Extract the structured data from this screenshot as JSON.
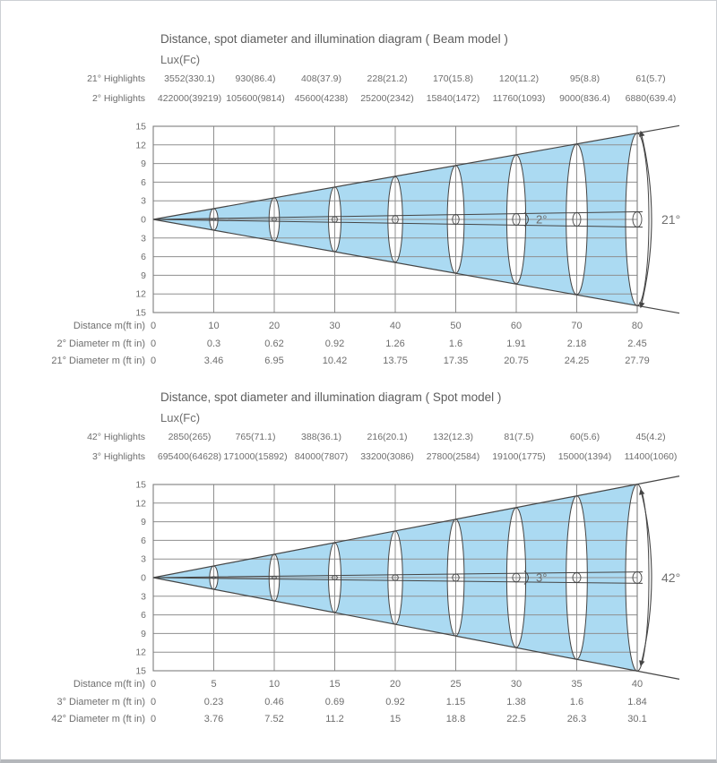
{
  "page": {
    "background": "#ffffff",
    "border_color": "#cdd0d4",
    "bottom_bar_color": "#b4b7bb"
  },
  "colors": {
    "beam_fill": "#abdaf2",
    "outline": "#454545",
    "grid": "#8f8f8f",
    "text": "#6e6e6e",
    "title_text": "#5d5d5d"
  },
  "chart_data": [
    {
      "type": "beam-illumination-diagram",
      "title": "Distance, spot diameter and illumination diagram ( Beam model )",
      "unit_label": "Lux(Fc)",
      "highlight_rows": [
        {
          "label": "21° Highlights",
          "values": [
            "3552(330.1)",
            "930(86.4)",
            "408(37.9)",
            "228(21.2)",
            "170(15.8)",
            "120(11.2)",
            "95(8.8)",
            "61(5.7)"
          ]
        },
        {
          "label": "2° Highlights",
          "values": [
            "422000(39219)",
            "105600(9814)",
            "45600(4238)",
            "25200(2342)",
            "15840(1472)",
            "11760(1093)",
            "9000(836.4)",
            "6880(639.4)"
          ]
        }
      ],
      "distances_m": [
        0,
        10,
        20,
        30,
        40,
        50,
        60,
        70,
        80
      ],
      "rows": [
        {
          "label": "Distance m(ft in)",
          "values": [
            "0",
            "10",
            "20",
            "30",
            "40",
            "50",
            "60",
            "70",
            "80"
          ]
        },
        {
          "label": "2° Diameter m (ft in)",
          "values": [
            "0",
            "0.3",
            "0.62",
            "0.92",
            "1.26",
            "1.6",
            "1.91",
            "2.18",
            "2.45"
          ]
        },
        {
          "label": "21° Diameter m (ft in)",
          "values": [
            "0",
            "3.46",
            "6.95",
            "10.42",
            "13.75",
            "17.35",
            "20.75",
            "24.25",
            "27.79"
          ]
        }
      ],
      "narrow_beam": {
        "angle_label": "2°",
        "diameters_m": [
          0,
          0.3,
          0.62,
          0.92,
          1.26,
          1.6,
          1.91,
          2.18,
          2.45
        ]
      },
      "wide_beam": {
        "angle_label": "21°",
        "diameters_m": [
          0,
          3.46,
          6.95,
          10.42,
          13.75,
          17.35,
          20.75,
          24.25,
          27.79
        ]
      },
      "y_axis": {
        "tick_labels": [
          "15",
          "12",
          "9",
          "6",
          "3",
          "0",
          "3",
          "6",
          "9",
          "12",
          "15"
        ],
        "range_units": 15,
        "grid": true
      }
    },
    {
      "type": "beam-illumination-diagram",
      "title": "Distance, spot diameter and illumination diagram ( Spot model )",
      "unit_label": "Lux(Fc)",
      "highlight_rows": [
        {
          "label": "42° Highlights",
          "values": [
            "2850(265)",
            "765(71.1)",
            "388(36.1)",
            "216(20.1)",
            "132(12.3)",
            "81(7.5)",
            "60(5.6)",
            "45(4.2)"
          ]
        },
        {
          "label": "3° Highlights",
          "values": [
            "695400(64628)",
            "171000(15892)",
            "84000(7807)",
            "33200(3086)",
            "27800(2584)",
            "19100(1775)",
            "15000(1394)",
            "11400(1060)"
          ]
        }
      ],
      "distances_m": [
        0,
        5,
        10,
        15,
        20,
        25,
        30,
        35,
        40
      ],
      "rows": [
        {
          "label": "Distance m(ft in)",
          "values": [
            "0",
            "5",
            "10",
            "15",
            "20",
            "25",
            "30",
            "35",
            "40"
          ]
        },
        {
          "label": "3° Diameter m (ft in)",
          "values": [
            "0",
            "0.23",
            "0.46",
            "0.69",
            "0.92",
            "1.15",
            "1.38",
            "1.6",
            "1.84"
          ]
        },
        {
          "label": "42° Diameter m (ft in)",
          "values": [
            "0",
            "3.76",
            "7.52",
            "11.2",
            "15",
            "18.8",
            "22.5",
            "26.3",
            "30.1"
          ]
        }
      ],
      "narrow_beam": {
        "angle_label": "3°",
        "diameters_m": [
          0,
          0.23,
          0.46,
          0.69,
          0.92,
          1.15,
          1.38,
          1.6,
          1.84
        ]
      },
      "wide_beam": {
        "angle_label": "42°",
        "diameters_m": [
          0,
          3.76,
          7.52,
          11.2,
          15,
          18.8,
          22.5,
          26.3,
          30.1
        ]
      },
      "y_axis": {
        "tick_labels": [
          "15",
          "12",
          "9",
          "6",
          "3",
          "0",
          "3",
          "6",
          "9",
          "12",
          "15"
        ],
        "range_units": 15,
        "grid": true
      }
    }
  ]
}
